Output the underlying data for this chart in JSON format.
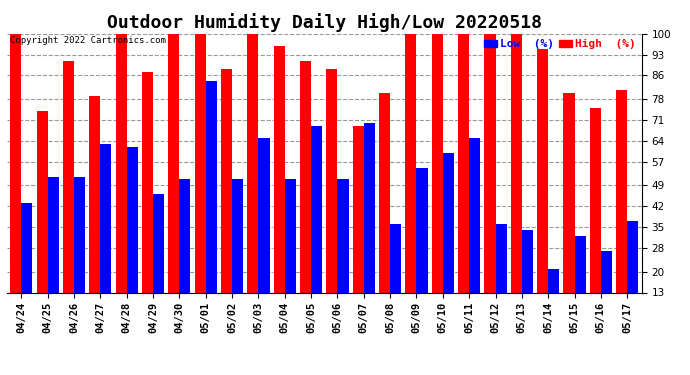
{
  "title": "Outdoor Humidity Daily High/Low 20220518",
  "copyright": "Copyright 2022 Cartronics.com",
  "legend_low": "Low  (%)",
  "legend_high": "High  (%)",
  "dates": [
    "04/24",
    "04/25",
    "04/26",
    "04/27",
    "04/28",
    "04/29",
    "04/30",
    "05/01",
    "05/02",
    "05/03",
    "05/04",
    "05/05",
    "05/06",
    "05/07",
    "05/08",
    "05/09",
    "05/10",
    "05/11",
    "05/12",
    "05/13",
    "05/14",
    "05/15",
    "05/16",
    "05/17"
  ],
  "high": [
    100,
    74,
    91,
    79,
    100,
    87,
    100,
    100,
    88,
    100,
    96,
    91,
    88,
    69,
    80,
    100,
    100,
    100,
    100,
    100,
    95,
    80,
    75,
    81
  ],
  "low": [
    43,
    52,
    52,
    63,
    62,
    46,
    51,
    84,
    51,
    65,
    51,
    69,
    51,
    70,
    36,
    55,
    60,
    65,
    36,
    34,
    21,
    32,
    27,
    37
  ],
  "ylim_min": 13,
  "ylim_max": 100,
  "yticks": [
    13,
    20,
    28,
    35,
    42,
    49,
    57,
    64,
    71,
    78,
    86,
    93,
    100
  ],
  "bar_width": 0.42,
  "background_color": "#ffffff",
  "high_color": "#ff0000",
  "low_color": "#0000ff",
  "grid_color": "#999999",
  "title_fontsize": 13,
  "tick_fontsize": 7.5,
  "copyright_fontsize": 6.5,
  "legend_fontsize": 8
}
